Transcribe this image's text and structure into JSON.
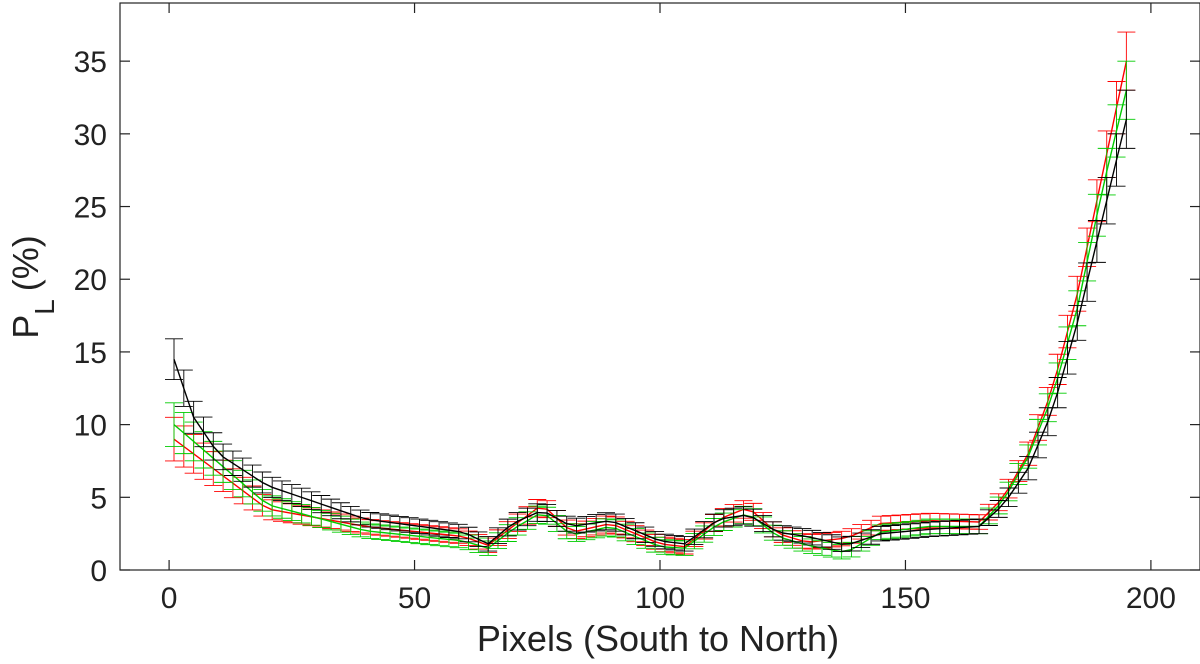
{
  "chart_data": {
    "type": "line",
    "title": "",
    "xlabel": "Pixels (South to North)",
    "ylabel": {
      "main": "P",
      "subscript": "L",
      "suffix": "(%)"
    },
    "xlim": [
      -10,
      210
    ],
    "ylim": [
      0,
      39
    ],
    "xticks": [
      0,
      50,
      100,
      150,
      200
    ],
    "yticks": [
      0,
      5,
      10,
      15,
      20,
      25,
      30,
      35
    ],
    "grid": false,
    "error_bars": true,
    "x_step": 2,
    "series": [
      {
        "color": "#ff0000",
        "x": [
          1,
          20,
          40,
          60,
          65,
          70,
          76,
          82,
          90,
          100,
          105,
          112,
          118,
          124,
          130,
          138,
          145,
          155,
          165,
          170,
          175,
          180,
          185,
          190,
          195
        ],
        "y": [
          9.0,
          4.2,
          3.0,
          2.3,
          1.7,
          3.0,
          4.5,
          2.6,
          3.2,
          1.8,
          1.6,
          3.5,
          4.3,
          2.5,
          1.9,
          2.2,
          3.2,
          3.4,
          3.3,
          5.0,
          8.0,
          12.5,
          19.0,
          27.0,
          35.0
        ],
        "yerr": [
          1.5,
          0.7,
          0.5,
          0.5,
          0.5,
          0.6,
          0.6,
          0.5,
          0.6,
          0.5,
          0.5,
          0.6,
          0.6,
          0.5,
          0.5,
          0.5,
          0.5,
          0.5,
          0.5,
          0.6,
          0.8,
          1.0,
          1.2,
          1.5,
          2.0
        ]
      },
      {
        "color": "#00cc00",
        "x": [
          1,
          20,
          40,
          60,
          65,
          70,
          76,
          82,
          90,
          100,
          105,
          112,
          118,
          124,
          130,
          138,
          145,
          155,
          165,
          170,
          175,
          180,
          185,
          190,
          195
        ],
        "y": [
          10.0,
          4.5,
          2.7,
          2.0,
          1.5,
          2.8,
          4.0,
          2.4,
          3.0,
          1.6,
          1.5,
          3.2,
          3.9,
          2.3,
          1.7,
          1.2,
          2.6,
          3.0,
          3.0,
          4.8,
          7.8,
          12.0,
          18.0,
          26.0,
          33.0
        ],
        "yerr": [
          1.5,
          0.7,
          0.5,
          0.5,
          0.5,
          0.6,
          0.6,
          0.5,
          0.6,
          0.5,
          0.5,
          0.6,
          0.6,
          0.5,
          0.5,
          0.5,
          0.5,
          0.5,
          0.5,
          0.6,
          0.8,
          1.0,
          1.2,
          1.5,
          2.0
        ]
      },
      {
        "color": "#000000",
        "x": [
          1,
          5,
          10,
          20,
          40,
          60,
          65,
          70,
          76,
          82,
          90,
          100,
          105,
          112,
          118,
          124,
          130,
          138,
          145,
          155,
          165,
          170,
          175,
          180,
          185,
          190,
          195
        ],
        "y": [
          14.5,
          10.5,
          8.0,
          5.8,
          3.5,
          2.6,
          1.8,
          3.2,
          4.1,
          3.0,
          3.4,
          2.0,
          1.8,
          3.5,
          3.8,
          2.6,
          2.3,
          1.7,
          2.5,
          2.8,
          3.0,
          4.5,
          7.0,
          11.0,
          17.0,
          24.0,
          31.0
        ],
        "yerr": [
          1.4,
          1.1,
          0.9,
          0.7,
          0.5,
          0.5,
          0.5,
          0.6,
          0.6,
          0.5,
          0.6,
          0.5,
          0.5,
          0.6,
          0.6,
          0.5,
          0.5,
          0.5,
          0.5,
          0.5,
          0.5,
          0.6,
          0.8,
          1.0,
          1.2,
          1.5,
          2.0
        ]
      }
    ]
  }
}
